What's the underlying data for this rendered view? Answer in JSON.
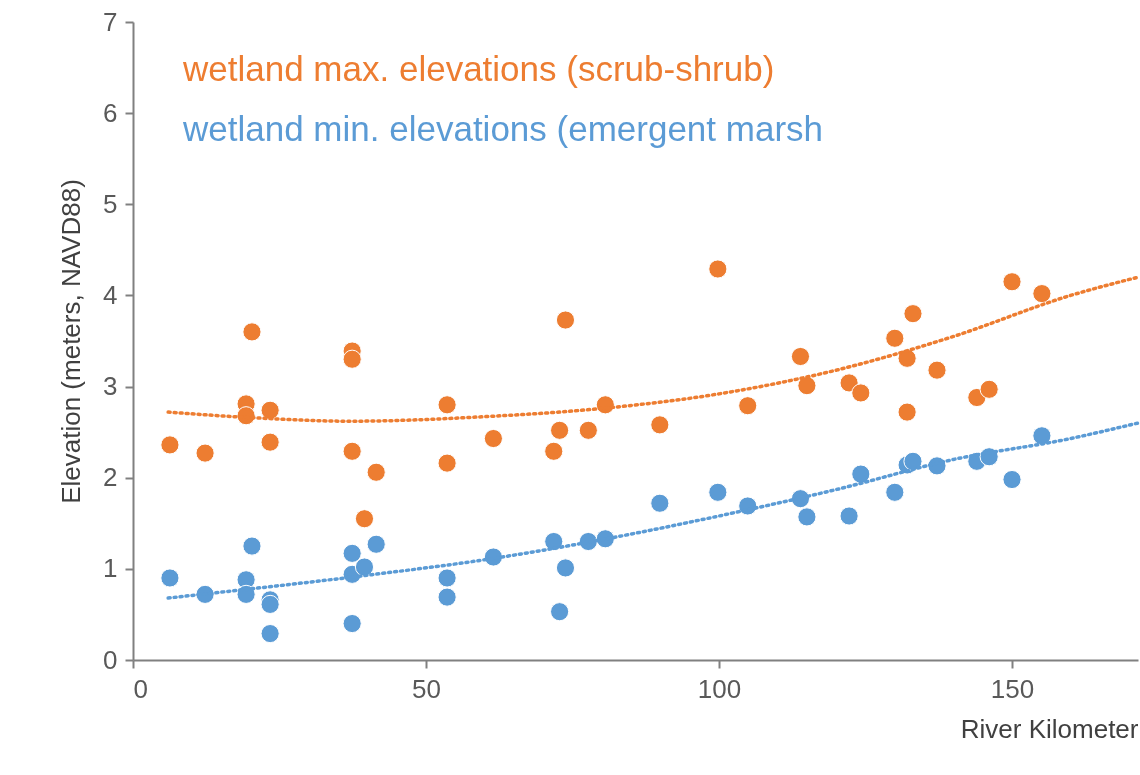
{
  "chart_data": {
    "type": "scatter",
    "xlabel": "River Kilometer",
    "ylabel": "Elevation (meters, NAVD88)",
    "xlim": [
      0,
      171.5
    ],
    "xticks": [
      0,
      50,
      100,
      150
    ],
    "ylim": [
      0,
      7
    ],
    "yticks": [
      0,
      1,
      2,
      3,
      4,
      5,
      6,
      7
    ],
    "grid": false,
    "legend": "top left",
    "marker": "circle",
    "series": [
      {
        "name": "wetland max. elevations (scrub-shrub)",
        "color": "#ed7d31",
        "x": [
          6.3,
          12.3,
          19.3,
          19.3,
          20.3,
          23.4,
          23.4,
          37.4,
          37.4,
          37.4,
          39.5,
          41.5,
          53.6,
          53.6,
          61.5,
          71.8,
          72.8,
          73.8,
          77.7,
          80.6,
          89.9,
          99.8,
          104.9,
          113.9,
          115.0,
          122.2,
          124.2,
          130.0,
          132.1,
          132.1,
          133.1,
          137.2,
          144.0,
          146.1,
          150.0,
          155.1
        ],
        "values": [
          2.36,
          2.27,
          2.81,
          2.68,
          3.6,
          2.74,
          2.39,
          3.39,
          3.3,
          2.29,
          1.55,
          2.06,
          2.8,
          2.16,
          2.43,
          2.29,
          2.52,
          3.73,
          2.52,
          2.8,
          2.58,
          4.29,
          2.79,
          3.33,
          3.01,
          3.04,
          2.93,
          3.53,
          3.31,
          2.72,
          3.8,
          3.18,
          2.88,
          2.97,
          4.15,
          4.02
        ]
      },
      {
        "name": "wetland min. elevations (emergent marsh",
        "color": "#5b9bd5",
        "x": [
          6.3,
          12.3,
          19.3,
          19.3,
          20.3,
          23.4,
          23.4,
          23.4,
          37.4,
          37.4,
          37.4,
          39.5,
          41.5,
          53.6,
          53.6,
          61.5,
          71.8,
          72.8,
          73.8,
          77.7,
          80.6,
          89.9,
          99.8,
          104.9,
          113.9,
          115.0,
          122.2,
          124.2,
          130.0,
          132.1,
          133.1,
          137.2,
          144.0,
          146.1,
          150.0,
          155.1
        ],
        "values": [
          0.9,
          0.72,
          0.88,
          0.72,
          1.25,
          0.66,
          0.61,
          0.29,
          1.17,
          0.94,
          0.4,
          1.02,
          1.27,
          0.9,
          0.69,
          1.13,
          1.3,
          0.53,
          1.01,
          1.3,
          1.33,
          1.72,
          1.84,
          1.69,
          1.77,
          1.57,
          1.58,
          2.04,
          1.84,
          2.14,
          2.18,
          2.13,
          2.18,
          2.23,
          1.98,
          2.46
        ]
      },
      {
        "color": "#ed7d31",
        "type": "line",
        "marker": "none",
        "line_style": "dotted",
        "x": [
          6,
          20,
          37,
          60,
          80,
          100,
          120,
          140,
          160,
          171.5
        ],
        "values": [
          2.72,
          2.66,
          2.62,
          2.67,
          2.76,
          2.92,
          3.18,
          3.55,
          4.0,
          4.2
        ]
      },
      {
        "color": "#5b9bd5",
        "type": "line",
        "marker": "none",
        "line_style": "dotted",
        "x": [
          6,
          20,
          40,
          60,
          80,
          100,
          120,
          140,
          160,
          171.5
        ],
        "values": [
          0.68,
          0.78,
          0.93,
          1.1,
          1.32,
          1.58,
          1.87,
          2.2,
          2.43,
          2.6
        ]
      }
    ]
  }
}
